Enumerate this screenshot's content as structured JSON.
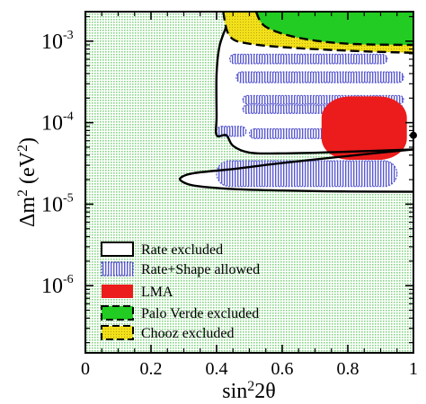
{
  "chart_data": {
    "type": "area",
    "x_axis": {
      "label_base": "sin",
      "label_sup": "2",
      "label_tail": "2θ",
      "range": [
        0,
        1
      ],
      "scale": "linear",
      "ticks": [
        {
          "value": 0,
          "label": "0"
        },
        {
          "value": 0.2,
          "label": "0.2"
        },
        {
          "value": 0.4,
          "label": "0.4"
        },
        {
          "value": 0.6,
          "label": "0.6"
        },
        {
          "value": 0.8,
          "label": "0.8"
        },
        {
          "value": 1,
          "label": "1"
        }
      ]
    },
    "y_axis": {
      "label_parts": [
        "Δm",
        "2",
        " (eV",
        "2",
        ")"
      ],
      "range": [
        1.5e-07,
        0.0023
      ],
      "scale": "log",
      "ticks": [
        {
          "value": 1e-06,
          "base": "10",
          "exp": "-6"
        },
        {
          "value": 1e-05,
          "base": "10",
          "exp": "-5"
        },
        {
          "value": 0.0001,
          "base": "10",
          "exp": "-4"
        },
        {
          "value": 0.001,
          "base": "10",
          "exp": "-3"
        }
      ]
    },
    "legend_position": "bottom-left",
    "colors": {
      "background_dots": "#86d486",
      "rate_excluded_fill": "#ffffff",
      "rate_shape_allowed": "#5a5ad0",
      "lma": "#ec1c1c",
      "palo_verde": "#22cc22",
      "chooz": "#f2e01a",
      "boundary": "#000000"
    },
    "series": [
      {
        "name": "Rate excluded",
        "role": "boundary",
        "points": [
          [
            1.0,
            4.7e-05
          ],
          [
            0.8,
            3.9e-05
          ],
          [
            0.6,
            3.2e-05
          ],
          [
            0.45,
            2.7e-05
          ],
          [
            0.33,
            2.4e-05
          ],
          [
            0.29,
            2.1e-05
          ],
          [
            0.3,
            1.85e-05
          ],
          [
            0.34,
            1.67e-05
          ],
          [
            0.45,
            1.53e-05
          ],
          [
            0.6,
            1.47e-05
          ],
          [
            0.8,
            1.43e-05
          ],
          [
            1.0,
            1.42e-05
          ]
        ]
      },
      {
        "name": "Rate excluded",
        "role": "boundary",
        "points": [
          [
            1.0,
            4.7e-05
          ],
          [
            0.8,
            4.4e-05
          ],
          [
            0.6,
            4.2e-05
          ],
          [
            0.5,
            4.3e-05
          ],
          [
            0.45,
            5.2e-05
          ],
          [
            0.43,
            7e-05
          ],
          [
            0.4,
            7e-05
          ],
          [
            0.4,
            0.00012
          ],
          [
            0.4,
            0.0004
          ],
          [
            0.41,
            0.0009
          ],
          [
            0.44,
            0.0019
          ],
          [
            0.45,
            0.0023
          ]
        ]
      },
      {
        "name": "Rate+Shape allowed",
        "role": "region",
        "bands": [
          {
            "x": [
              0.48,
              0.97
            ],
            "y": [
              0.00013,
              0.000165
            ]
          },
          {
            "x": [
              0.48,
              0.97
            ],
            "y": [
              0.00017,
              0.000215
            ]
          },
          {
            "x": [
              0.46,
              0.97
            ],
            "y": [
              0.00031,
              0.00042
            ]
          },
          {
            "x": [
              0.44,
              0.92
            ],
            "y": [
              0.00053,
              0.00069
            ]
          },
          {
            "x": [
              0.4,
              0.49
            ],
            "y": [
              6.8e-05,
              9e-05
            ]
          },
          {
            "x": [
              0.5,
              0.96
            ],
            "y": [
              6.4e-05,
              8.4e-05
            ]
          },
          {
            "x": [
              0.4,
              0.95
            ],
            "y": [
              1.65e-05,
              3.4e-05
            ]
          }
        ]
      },
      {
        "name": "LMA",
        "role": "region",
        "x_range": [
          0.72,
          0.98
        ],
        "y_range": [
          3.5e-05,
          0.00021
        ]
      },
      {
        "name": "Palo Verde excluded",
        "role": "region",
        "boundary": [
          [
            0.52,
            0.0023
          ],
          [
            0.55,
            0.0015
          ],
          [
            0.65,
            0.0011
          ],
          [
            0.8,
            0.00093
          ],
          [
            1.0,
            0.0009
          ]
        ]
      },
      {
        "name": "Chooz excluded",
        "role": "region",
        "boundary": [
          [
            0.42,
            0.0023
          ],
          [
            0.44,
            0.00115
          ],
          [
            0.5,
            0.00093
          ],
          [
            0.65,
            0.00082
          ],
          [
            0.85,
            0.00075
          ],
          [
            1.0,
            0.00072
          ]
        ]
      },
      {
        "name": "best fit",
        "role": "marker",
        "points": [
          [
            1.0,
            7e-05
          ]
        ]
      }
    ],
    "legend": [
      {
        "label": "Rate excluded",
        "swatch": "white-box"
      },
      {
        "label": "Rate+Shape allowed",
        "swatch": "blue-hatch"
      },
      {
        "label": "LMA",
        "swatch": "red"
      },
      {
        "label": "Palo Verde excluded",
        "swatch": "green-dashed"
      },
      {
        "label": "Chooz excluded",
        "swatch": "yellow-dashed"
      }
    ]
  }
}
